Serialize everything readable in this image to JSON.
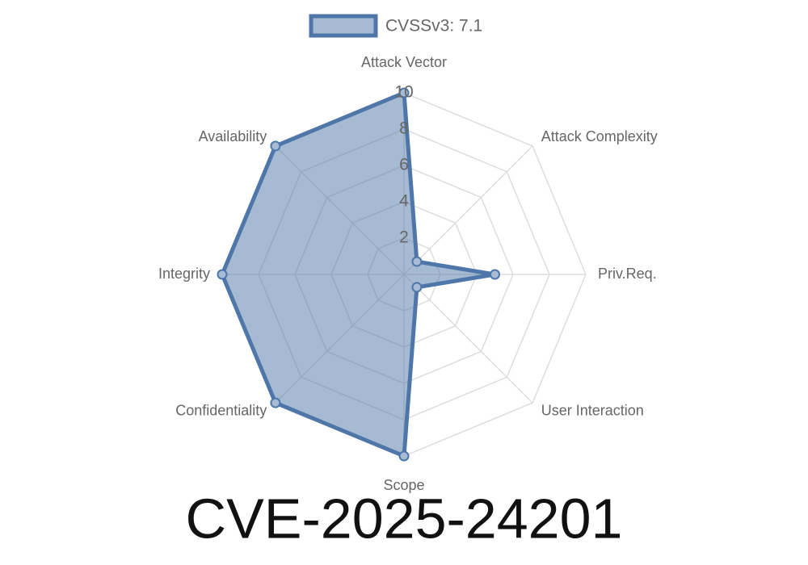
{
  "chart_data": {
    "type": "radar",
    "title": "CVE-2025-24201",
    "categories": [
      "Attack Vector",
      "Attack Complexity",
      "Priv.Req.",
      "User Interaction",
      "Scope",
      "Confidentiality",
      "Integrity",
      "Availability"
    ],
    "series": [
      {
        "name": "CVSSv3: 7.1",
        "color": "#4e76a8",
        "values": [
          10,
          1,
          5,
          1,
          10,
          10,
          10,
          10
        ]
      }
    ],
    "rlim": [
      0,
      10
    ],
    "rticks": [
      2,
      4,
      6,
      8,
      10
    ],
    "grid": true,
    "legend": "top"
  }
}
